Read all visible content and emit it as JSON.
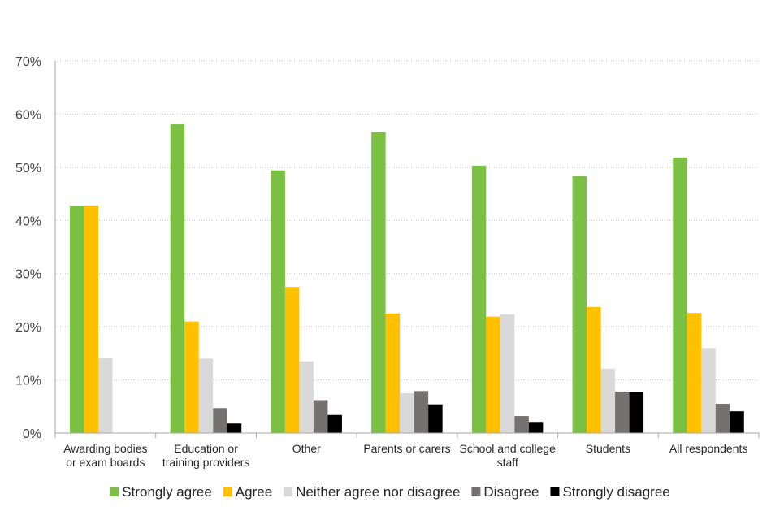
{
  "chart_data": {
    "type": "bar",
    "title": "",
    "xlabel": "",
    "ylabel": "",
    "ylim": [
      0,
      70
    ],
    "yticks": [
      "0%",
      "10%",
      "20%",
      "30%",
      "40%",
      "50%",
      "60%",
      "70%"
    ],
    "grid": true,
    "legend_position": "bottom",
    "categories": [
      [
        "Awarding bodies",
        "or exam boards"
      ],
      [
        "Education or",
        "training providers"
      ],
      [
        "Other"
      ],
      [
        "Parents or carers"
      ],
      [
        "School and college",
        "staff"
      ],
      [
        "Students"
      ],
      [
        "All respondents"
      ]
    ],
    "series": [
      {
        "name": "Strongly agree",
        "color": "#7AC143",
        "values": [
          42.8,
          58.2,
          49.4,
          56.6,
          50.3,
          48.4,
          51.8
        ]
      },
      {
        "name": "Agree",
        "color": "#FFC000",
        "values": [
          42.8,
          21.0,
          27.5,
          22.5,
          21.9,
          23.7,
          22.6
        ]
      },
      {
        "name": "Neither agree nor disagree",
        "color": "#D9D9D9",
        "values": [
          14.2,
          14.0,
          13.5,
          7.5,
          22.3,
          12.1,
          16.0
        ]
      },
      {
        "name": "Disagree",
        "color": "#767171",
        "values": [
          0,
          4.7,
          6.2,
          7.9,
          3.2,
          7.8,
          5.5
        ]
      },
      {
        "name": "Strongly disagree",
        "color": "#000000",
        "values": [
          0,
          1.8,
          3.4,
          5.4,
          2.1,
          7.7,
          4.1
        ]
      }
    ]
  }
}
